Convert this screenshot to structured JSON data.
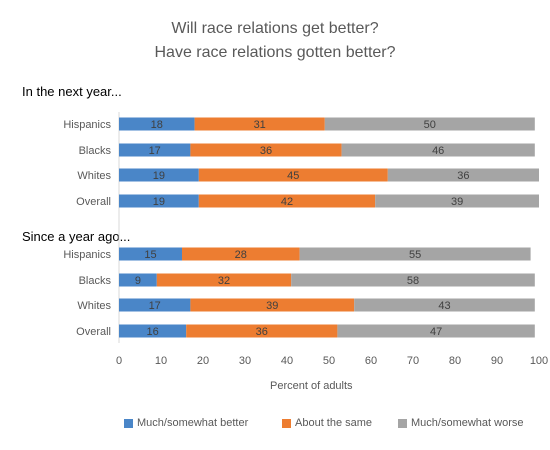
{
  "chart_data": {
    "type": "bar",
    "orientation": "horizontal",
    "stacked": true,
    "title_lines": [
      "Will race relations get better?",
      "Have race relations gotten better?"
    ],
    "xlabel": "Percent of adults",
    "xlim": [
      0,
      100
    ],
    "xticks": [
      0,
      10,
      20,
      30,
      40,
      50,
      60,
      70,
      80,
      90,
      100
    ],
    "grid": false,
    "legend_position": "bottom",
    "series": [
      {
        "name": "Much/somewhat better",
        "color": "#4a86c8"
      },
      {
        "name": "About the same",
        "color": "#ed7d31"
      },
      {
        "name": "Much/somewhat worse",
        "color": "#a5a5a5"
      }
    ],
    "groups": [
      {
        "label": "In the next year...",
        "categories": [
          "Hispanics",
          "Blacks",
          "Whites",
          "Overall"
        ],
        "values": [
          [
            18,
            31,
            50
          ],
          [
            17,
            36,
            46
          ],
          [
            19,
            45,
            36
          ],
          [
            19,
            42,
            39
          ]
        ]
      },
      {
        "label": "Since a year ago...",
        "categories": [
          "Hispanics",
          "Blacks",
          "Whites",
          "Overall"
        ],
        "values": [
          [
            15,
            28,
            55
          ],
          [
            9,
            32,
            58
          ],
          [
            17,
            39,
            43
          ],
          [
            16,
            36,
            47
          ]
        ]
      }
    ]
  }
}
